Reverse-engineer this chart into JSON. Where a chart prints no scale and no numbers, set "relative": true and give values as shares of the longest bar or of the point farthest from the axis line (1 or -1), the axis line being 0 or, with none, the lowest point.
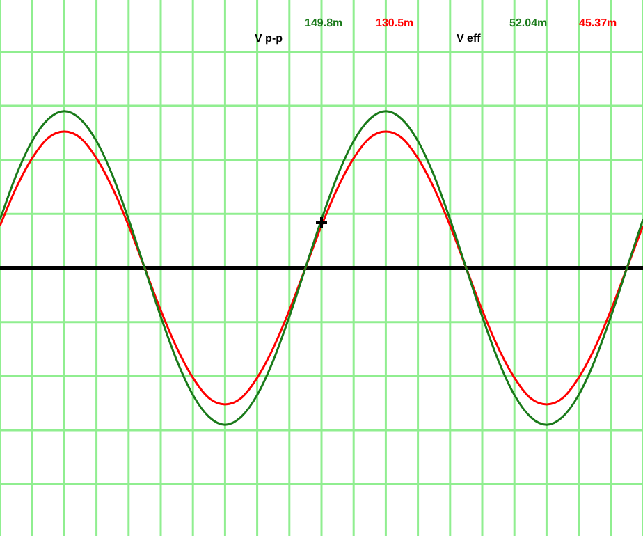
{
  "chart_data": {
    "type": "line",
    "relative": true,
    "grid": true,
    "legend": false,
    "marker": "none",
    "line_style": "solid",
    "categories": [
      null,
      null,
      null,
      null,
      null,
      null,
      null,
      null,
      null,
      null,
      null,
      null,
      null,
      null,
      null,
      null,
      null,
      null,
      null,
      null,
      null,
      null,
      null,
      null,
      null,
      null,
      null,
      null,
      null,
      null,
      null,
      null,
      null,
      null,
      null,
      null,
      null,
      null,
      null,
      null,
      null
    ],
    "series": [
      {
        "color": "#1a7a1a",
        "values": [
          0.31,
          0.59,
          0.81,
          0.95,
          1,
          0.95,
          0.81,
          0.59,
          0.31,
          0,
          -0.31,
          -0.59,
          -0.81,
          -0.95,
          -1,
          -0.95,
          -0.81,
          -0.59,
          -0.31,
          0,
          0.31,
          0.59,
          0.81,
          0.95,
          1,
          0.95,
          0.81,
          0.59,
          0.31,
          0,
          -0.31,
          -0.59,
          -0.81,
          -0.95,
          -1,
          -0.95,
          -0.81,
          -0.59,
          -0.31,
          0,
          0.31
        ]
      },
      {
        "color": "#ff0000",
        "values": [
          0.27,
          0.51,
          0.7,
          0.83,
          0.87,
          0.83,
          0.7,
          0.51,
          0.27,
          0,
          -0.27,
          -0.51,
          -0.7,
          -0.83,
          -0.87,
          -0.83,
          -0.7,
          -0.51,
          -0.27,
          0,
          0.27,
          0.51,
          0.7,
          0.83,
          0.87,
          0.83,
          0.7,
          0.51,
          0.27,
          0,
          -0.27,
          -0.51,
          -0.7,
          -0.83,
          -0.87,
          -0.83,
          -0.7,
          -0.51,
          -0.27,
          0,
          0.27
        ]
      }
    ],
    "annotations": [
      "V p-p",
      "149.8m",
      "130.5m",
      "V eff",
      "52.04m",
      "45.37m"
    ]
  }
}
